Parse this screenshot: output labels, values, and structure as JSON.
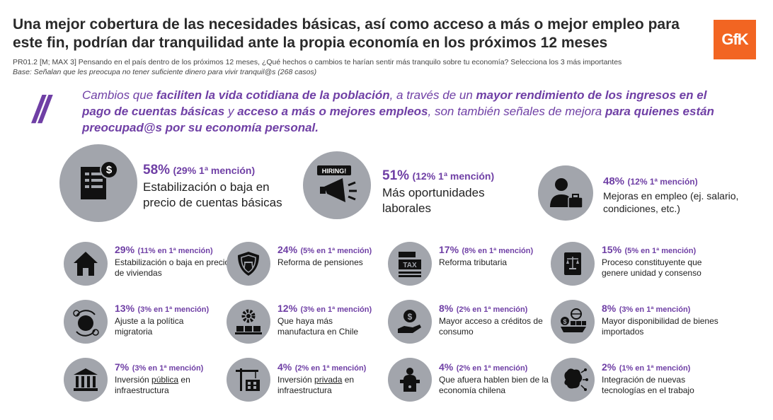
{
  "header": {
    "title": "Una mejor cobertura de las necesidades básicas, así como acceso a más o mejor empleo para este fin, podrían dar tranquilidad ante la propia economía en los próximos 12 meses",
    "question": "PR01.2 [M; MAX 3] Pensando en el país dentro de los próximos 12 meses, ¿Qué hechos o cambios te harían sentir más tranquilo sobre tu economía? Selecciona los 3 más importantes",
    "base": "Base: Señalan que les preocupa no tener suficiente dinero para vivir tranquil@s (268 casos)",
    "logo": "GfK"
  },
  "quote": {
    "mark": "//",
    "p1": "Cambios que ",
    "b1": "faciliten la vida cotidiana de la población",
    "p2": ", a través de un ",
    "b2": "mayor rendimiento de los ingresos en el pago de cuentas básicas",
    "p3": " y ",
    "b3": "acceso a más o mejores empleos",
    "p4": ", son también señales de mejora ",
    "b4": "para quienes están preocupad@s por su economía personal."
  },
  "top_items": [
    {
      "pct": "58%",
      "mention": "(29% 1ª mención)",
      "label": "Estabilización o baja en precio de cuentas básicas",
      "icon": "bill-icon"
    },
    {
      "pct": "51%",
      "mention": "(12% 1ª mención)",
      "label": "Más oportunidades laborales",
      "icon": "hiring-megaphone-icon",
      "sign": "HIRING!"
    },
    {
      "pct": "48%",
      "mention": "(12% 1ª mención)",
      "label": "Mejoras en empleo (ej. salario, condiciones, etc.)",
      "icon": "worker-briefcase-icon"
    }
  ],
  "items": [
    {
      "pct": "29%",
      "mention": "(11% en 1ª mención)",
      "label": "Estabilización o baja en precio de viviendas",
      "icon": "house-icon"
    },
    {
      "pct": "24%",
      "mention": "(5% en 1ª mención)",
      "label": "Reforma de pensiones",
      "icon": "pension-shield-icon"
    },
    {
      "pct": "17%",
      "mention": "(8% en 1ª mención)",
      "label": "Reforma tributaria",
      "icon": "tax-icon",
      "sign": "TAX"
    },
    {
      "pct": "15%",
      "mention": "(5% en 1ª mención)",
      "label": "Proceso constituyente que genere unidad y consenso",
      "icon": "constitution-book-icon"
    },
    {
      "pct": "13%",
      "mention": "(3% en 1ª mención)",
      "label": "Ajuste a la política migratoria",
      "icon": "migration-globe-icon"
    },
    {
      "pct": "12%",
      "mention": "(3% en 1ª mención)",
      "label": "Que haya más manufactura en Chile",
      "icon": "manufacturing-gear-icon"
    },
    {
      "pct": "8%",
      "mention": "(2% en 1ª mención)",
      "label": "Mayor acceso a créditos de consumo",
      "icon": "credit-hand-icon"
    },
    {
      "pct": "8%",
      "mention": "(3% en 1ª mención)",
      "label": "Mayor disponibilidad de bienes importados",
      "icon": "imports-ship-icon"
    },
    {
      "pct": "7%",
      "mention": "(3% en 1ª mención)",
      "label_pre": "Inversión ",
      "label_u": "pública",
      "label_post": " en infraestructura",
      "icon": "public-building-icon"
    },
    {
      "pct": "4%",
      "mention": "(2% en 1ª mención)",
      "label_pre": "Inversión ",
      "label_u": "privada",
      "label_post": " en infraestructura",
      "icon": "construction-crane-icon"
    },
    {
      "pct": "4%",
      "mention": "(2% en 1ª mención)",
      "label": "Que afuera hablen bien de la economía chilena",
      "icon": "speaker-podium-icon"
    },
    {
      "pct": "2%",
      "mention": "(1% en 1ª mención)",
      "label": "Integración de nuevas tecnologías en el trabajo",
      "icon": "tech-brain-icon"
    }
  ],
  "colors": {
    "accent": "#6f3fa5",
    "icon_bg": "#a2a5ac",
    "logo": "#f26522"
  }
}
